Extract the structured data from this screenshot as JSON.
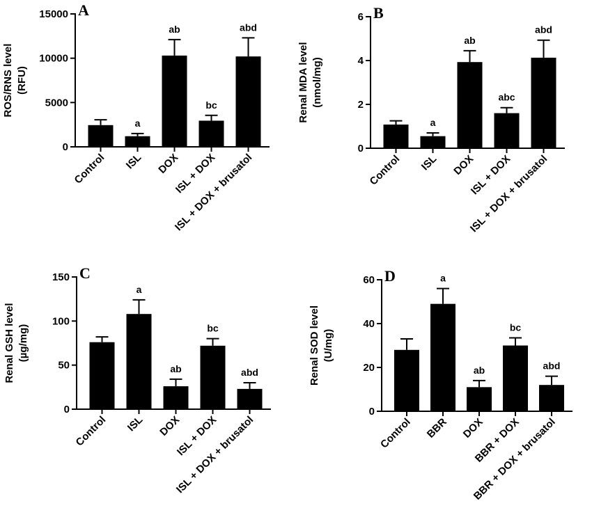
{
  "chart_data": [
    {
      "type": "bar",
      "label": "A",
      "ylabel": [
        "ROS/RNS level",
        "(RFU)"
      ],
      "categories": [
        "Control",
        "ISL",
        "DOX",
        "ISL + DOX",
        "ISL + DOX + brusatol"
      ],
      "values": [
        2450,
        1200,
        10300,
        2950,
        10200
      ],
      "errors": [
        600,
        300,
        1800,
        600,
        2100
      ],
      "annotations": [
        null,
        "a",
        "ab",
        "bc",
        "abd"
      ],
      "color": "#000000",
      "ylim": [
        0,
        15000
      ],
      "yticks": [
        0,
        5000,
        10000,
        15000
      ]
    },
    {
      "type": "bar",
      "label": "B",
      "ylabel": [
        "Renal MDA level",
        "(nmol/mg)"
      ],
      "categories": [
        "Control",
        "ISL",
        "DOX",
        "ISL + DOX",
        "ISL + DOX + brusatol"
      ],
      "values": [
        1.08,
        0.55,
        3.93,
        1.6,
        4.13
      ],
      "errors": [
        0.17,
        0.15,
        0.52,
        0.25,
        0.8
      ],
      "annotations": [
        null,
        "a",
        "ab",
        "abc",
        "abd"
      ],
      "color": "#000000",
      "ylim": [
        0,
        6
      ],
      "yticks": [
        0,
        2,
        4,
        6
      ]
    },
    {
      "type": "bar",
      "label": "C",
      "ylabel": [
        "Renal GSH level",
        "(µg/mg)"
      ],
      "categories": [
        "Control",
        "ISL",
        "DOX",
        "ISL + DOX",
        "ISL + DOX + brusatol"
      ],
      "values": [
        76,
        108,
        26,
        72,
        23
      ],
      "errors": [
        6,
        16,
        8,
        8,
        7
      ],
      "annotations": [
        null,
        "a",
        "ab",
        "bc",
        "abd"
      ],
      "color": "#000000",
      "ylim": [
        0,
        150
      ],
      "yticks": [
        0,
        50,
        100,
        150
      ]
    },
    {
      "type": "bar",
      "label": "D",
      "ylabel": [
        "Renal SOD level",
        "(U/mg)"
      ],
      "categories": [
        "Control",
        "BBR",
        "DOX",
        "BBR + DOX",
        "BBR + DOX + brusatol"
      ],
      "values": [
        28,
        49,
        11,
        30,
        12
      ],
      "errors": [
        5,
        7,
        3,
        3.5,
        4
      ],
      "annotations": [
        null,
        "a",
        "ab",
        "bc",
        "abd"
      ],
      "color": "#000000",
      "ylim": [
        0,
        60
      ],
      "yticks": [
        0,
        20,
        40,
        60
      ]
    }
  ]
}
